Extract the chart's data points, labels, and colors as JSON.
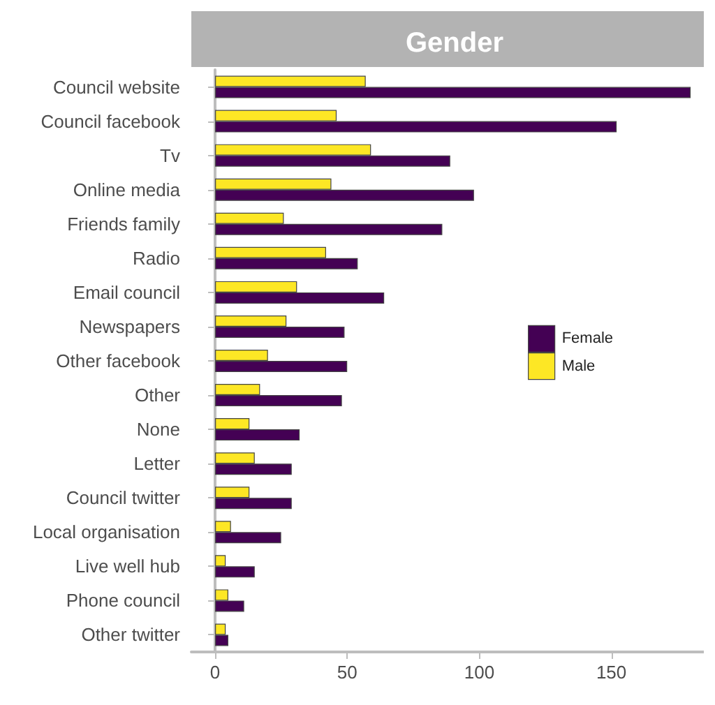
{
  "chart_data": {
    "type": "bar",
    "orientation": "horizontal",
    "title": "Gender",
    "categories": [
      "Council website",
      "Council facebook",
      "Tv",
      "Online media",
      "Friends family",
      "Radio",
      "Email council",
      "Newspapers",
      "Other facebook",
      "Other",
      "None",
      "Letter",
      "Council twitter",
      "Local organisation",
      "Live well hub",
      "Phone council",
      "Other twitter"
    ],
    "series": [
      {
        "name": "Female",
        "color": "#440154",
        "values": [
          180,
          152,
          89,
          98,
          86,
          54,
          64,
          49,
          50,
          48,
          32,
          29,
          29,
          25,
          15,
          11,
          5
        ]
      },
      {
        "name": "Male",
        "color": "#fde725",
        "values": [
          57,
          46,
          59,
          44,
          26,
          42,
          31,
          27,
          20,
          17,
          13,
          15,
          13,
          6,
          4,
          5,
          4
        ]
      }
    ],
    "xlim": [
      -9,
      185
    ],
    "xticks": [
      0,
      50,
      100,
      150
    ],
    "grid": false,
    "legend": "right"
  }
}
